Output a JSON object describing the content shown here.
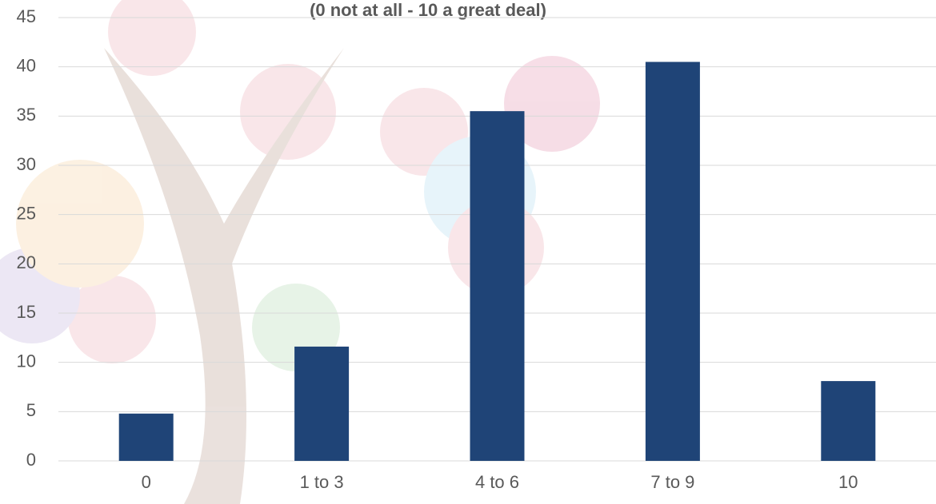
{
  "chart_data": {
    "type": "bar",
    "title": "(0 not at all - 10 a great deal)",
    "categories": [
      "0",
      "1 to 3",
      "4 to 6",
      "7 to 9",
      "10"
    ],
    "values": [
      4.8,
      11.6,
      35.5,
      40.5,
      8.1
    ],
    "color": "#1f4477",
    "ylim": [
      0,
      45
    ],
    "yticks": [
      0,
      5,
      10,
      15,
      20,
      25,
      30,
      35,
      40,
      45
    ],
    "grid": true
  }
}
